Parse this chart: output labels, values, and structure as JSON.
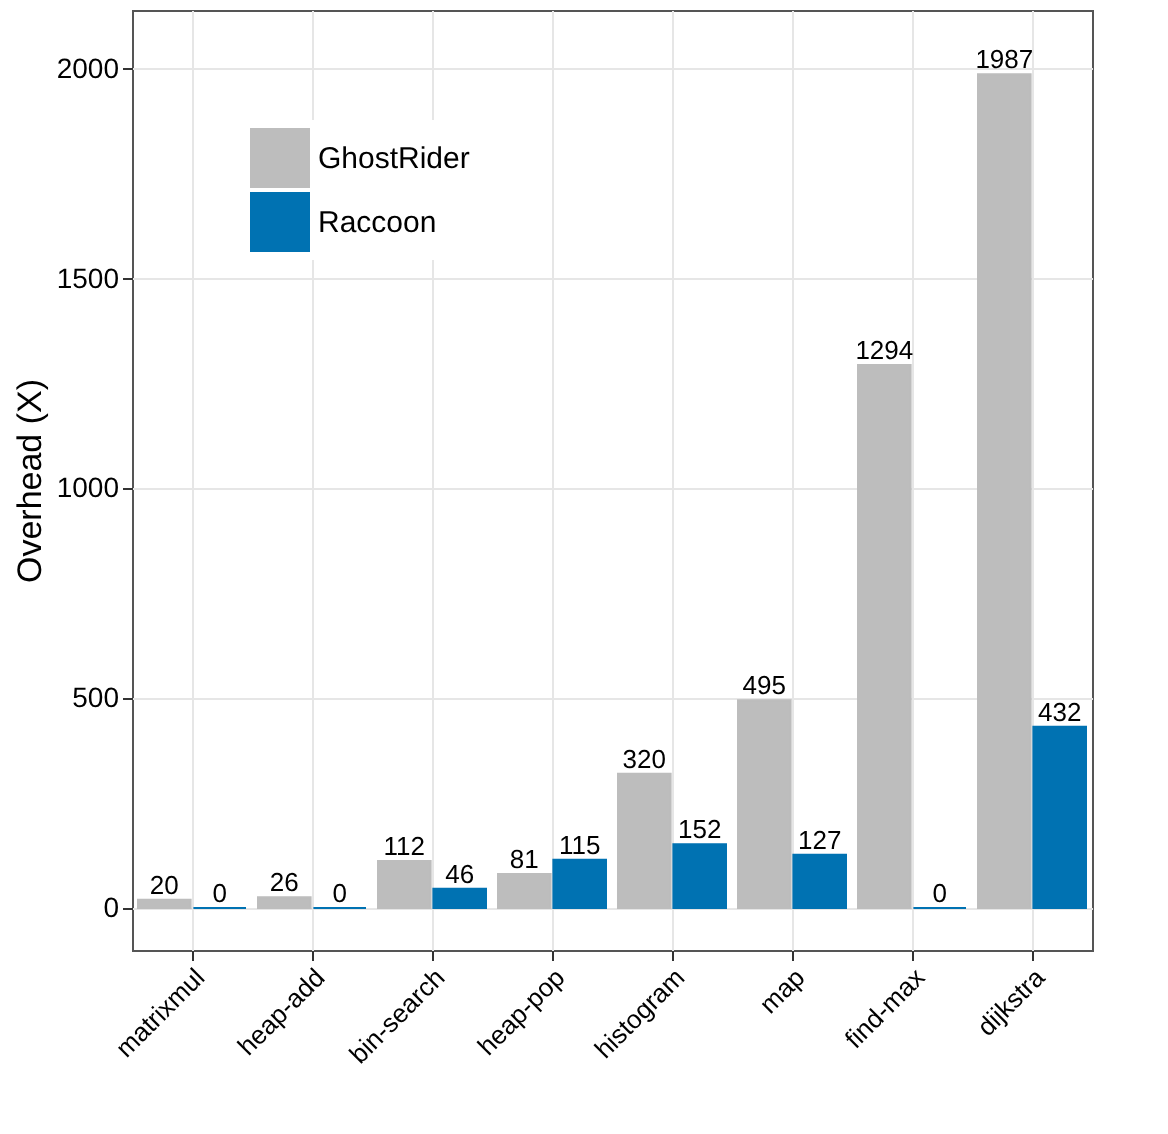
{
  "chart_data": {
    "type": "bar",
    "ylabel": "Overhead (X)",
    "categories": [
      "matrixmul",
      "heap-add",
      "bin-search",
      "heap-pop",
      "histogram",
      "map",
      "find-max",
      "dijkstra"
    ],
    "series": [
      {
        "name": "GhostRider",
        "color": "#bdbdbd",
        "values": [
          20,
          26,
          112,
          81,
          320,
          495,
          1294,
          1987
        ]
      },
      {
        "name": "Raccoon",
        "color": "#0072b2",
        "values": [
          0,
          0,
          46,
          115,
          152,
          127,
          0,
          432
        ]
      }
    ],
    "ylim": [
      -100,
      2140
    ],
    "yticks": [
      0,
      500,
      1000,
      1500,
      2000
    ],
    "grid": true,
    "legend": "top left",
    "data_labels": true
  }
}
